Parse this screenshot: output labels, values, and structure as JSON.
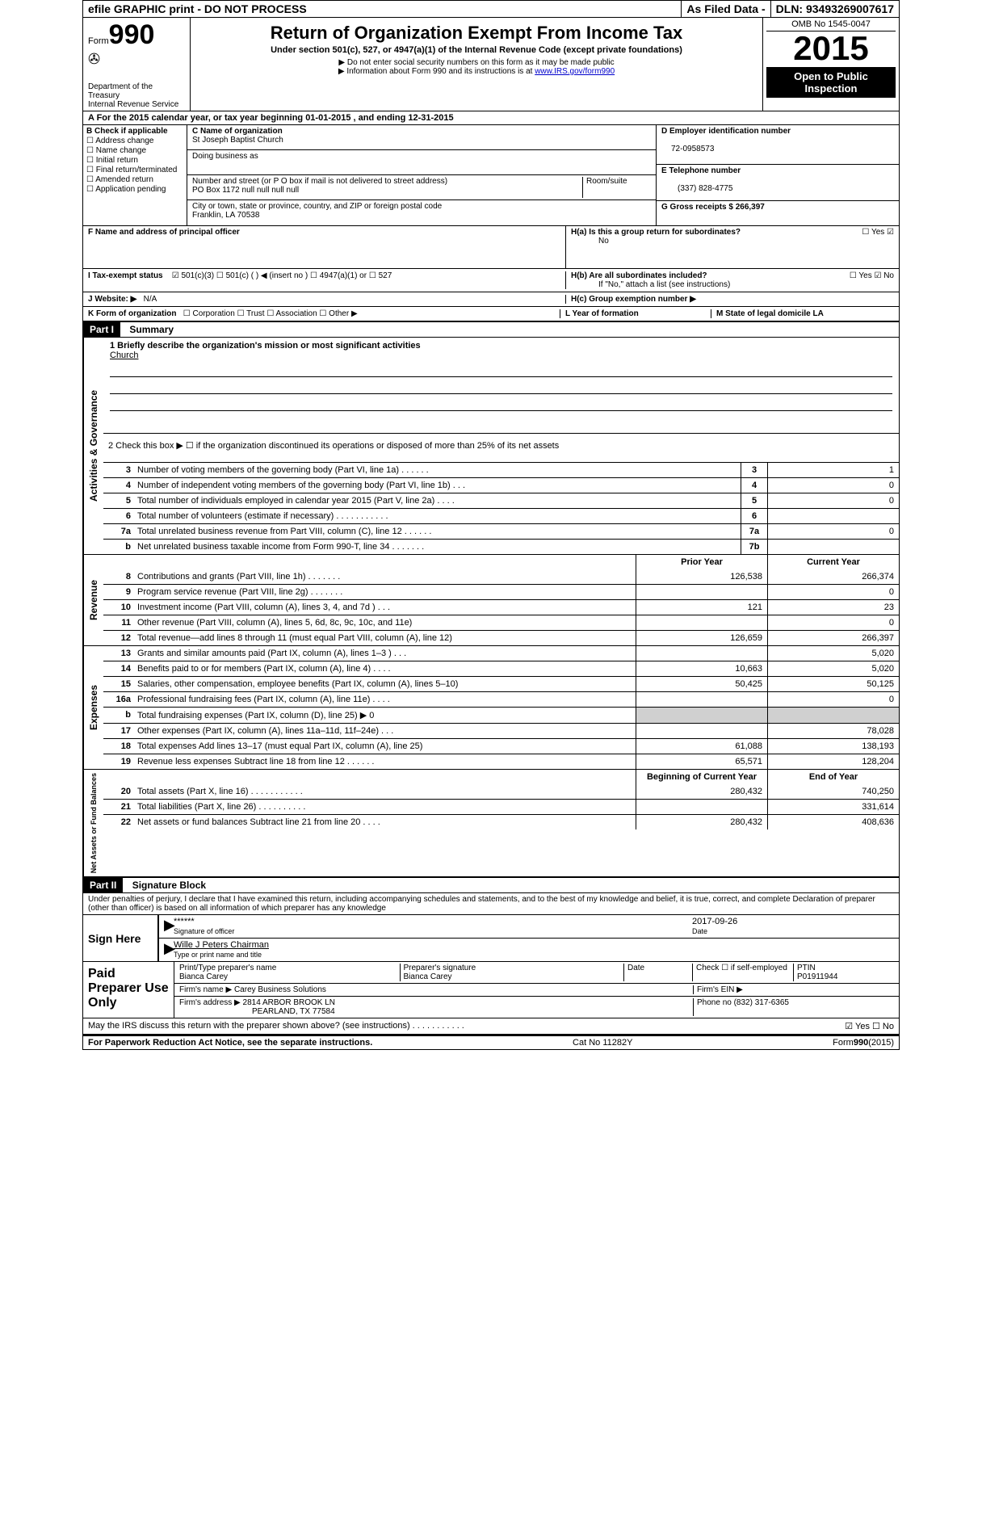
{
  "topbar": {
    "left": "efile GRAPHIC print - DO NOT PROCESS",
    "mid": "As Filed Data -",
    "right": "DLN: 93493269007617"
  },
  "header": {
    "form_prefix": "Form",
    "form_number": "990",
    "dept1": "Department of the Treasury",
    "dept2": "Internal Revenue Service",
    "title": "Return of Organization Exempt From Income Tax",
    "subtitle": "Under section 501(c), 527, or 4947(a)(1) of the Internal Revenue Code (except private foundations)",
    "note1": "▶ Do not enter social security numbers on this form as it may be made public",
    "note2_pre": "▶ Information about Form 990 and its instructions is at ",
    "note2_link": "www.IRS.gov/form990",
    "omb": "OMB No 1545-0047",
    "year": "2015",
    "open1": "Open to Public",
    "open2": "Inspection"
  },
  "lineA": "A  For the 2015 calendar year, or tax year beginning 01-01-2015   , and ending 12-31-2015",
  "sectionB": {
    "label": "B Check if applicable",
    "checks": [
      "Address change",
      "Name change",
      "Initial return",
      "Final return/terminated",
      "Amended return",
      "Application pending"
    ],
    "c_label": "C Name of organization",
    "org_name": "St Joseph Baptist Church",
    "dba_label": "Doing business as",
    "street_label": "Number and street (or P O  box if mail is not delivered to street address)",
    "room_label": "Room/suite",
    "street": "PO Box 1172 null null null null",
    "city_label": "City or town, state or province, country, and ZIP or foreign postal code",
    "city": "Franklin, LA  70538",
    "d_label": "D Employer identification number",
    "ein": "72-0958573",
    "e_label": "E Telephone number",
    "phone": "(337) 828-4775",
    "g_label": "G Gross receipts $ 266,397"
  },
  "sectionF": {
    "f_label": "F  Name and address of principal officer",
    "ha_label": "H(a)  Is this a group return for subordinates?",
    "ha_no": "No",
    "ha_yes_box": "☐  Yes  ☑",
    "hb_label": "H(b)  Are all subordinates included?",
    "hb_boxes": "☐ Yes  ☑ No",
    "hb_note": "If \"No,\" attach a list  (see instructions)",
    "hc_label": "H(c)  Group exemption number ▶"
  },
  "lineI": {
    "label": "I  Tax-exempt status",
    "opts": "☑ 501(c)(3)    ☐ 501(c) (  ) ◀ (insert no )    ☐ 4947(a)(1) or    ☐ 527"
  },
  "lineJ": {
    "label": "J  Website: ▶",
    "val": "N/A"
  },
  "lineK": {
    "label": "K Form of organization",
    "opts": "☐ Corporation  ☐ Trust  ☐ Association  ☐ Other ▶",
    "l_label": "L Year of formation",
    "m_label": "M State of legal domicile  LA"
  },
  "part1": {
    "hdr": "Part I",
    "title": "Summary",
    "line1_label": "1 Briefly describe the organization's mission or most significant activities",
    "line1_val": "Church",
    "line2": "2  Check this box ▶ ☐ if the organization discontinued its operations or disposed of more than 25% of its net assets"
  },
  "governance": {
    "vlabel": "Activities & Governance",
    "rows": [
      {
        "n": "3",
        "t": "Number of voting members of the governing body (Part VI, line 1a)  .   .   .   .   .   .",
        "box": "3",
        "v": "1"
      },
      {
        "n": "4",
        "t": "Number of independent voting members of the governing body (Part VI, line 1b)  .   .   .",
        "box": "4",
        "v": "0"
      },
      {
        "n": "5",
        "t": "Total number of individuals employed in calendar year 2015 (Part V, line 2a)  .   .   .   .",
        "box": "5",
        "v": "0"
      },
      {
        "n": "6",
        "t": "Total number of volunteers (estimate if necessary)  .   .   .   .   .   .   .   .   .   .   .",
        "box": "6",
        "v": ""
      },
      {
        "n": "7a",
        "t": "Total unrelated business revenue from Part VIII, column (C), line 12  .   .   .   .   .   .",
        "box": "7a",
        "v": "0"
      },
      {
        "n": "b",
        "t": "Net unrelated business taxable income from Form 990-T, line 34  .   .   .   .   .   .   .",
        "box": "7b",
        "v": ""
      }
    ]
  },
  "twocol_hdr": {
    "prior": "Prior Year",
    "current": "Current Year"
  },
  "revenue": {
    "vlabel": "Revenue",
    "rows": [
      {
        "n": "8",
        "t": "Contributions and grants (Part VIII, line 1h)  .   .   .   .   .   .   .",
        "p": "126,538",
        "c": "266,374"
      },
      {
        "n": "9",
        "t": "Program service revenue (Part VIII, line 2g)  .   .   .   .   .   .   .",
        "p": "",
        "c": "0"
      },
      {
        "n": "10",
        "t": "Investment income (Part VIII, column (A), lines 3, 4, and 7d )  .   .   .",
        "p": "121",
        "c": "23"
      },
      {
        "n": "11",
        "t": "Other revenue (Part VIII, column (A), lines 5, 6d, 8c, 9c, 10c, and 11e)",
        "p": "",
        "c": "0"
      },
      {
        "n": "12",
        "t": "Total revenue—add lines 8 through 11 (must equal Part VIII, column (A), line 12)",
        "p": "126,659",
        "c": "266,397"
      }
    ]
  },
  "expenses": {
    "vlabel": "Expenses",
    "rows": [
      {
        "n": "13",
        "t": "Grants and similar amounts paid (Part IX, column (A), lines 1–3 )  .   .   .",
        "p": "",
        "c": "5,020"
      },
      {
        "n": "14",
        "t": "Benefits paid to or for members (Part IX, column (A), line 4)  .   .   .   .",
        "p": "10,663",
        "c": "5,020"
      },
      {
        "n": "15",
        "t": "Salaries, other compensation, employee benefits (Part IX, column (A), lines 5–10)",
        "p": "50,425",
        "c": "50,125"
      },
      {
        "n": "16a",
        "t": "Professional fundraising fees (Part IX, column (A), line 11e)  .   .   .   .",
        "p": "",
        "c": "0"
      },
      {
        "n": "b",
        "t": "Total fundraising expenses (Part IX, column (D), line 25) ▶ 0",
        "p": "—shade—",
        "c": "—shade—"
      },
      {
        "n": "17",
        "t": "Other expenses (Part IX, column (A), lines 11a–11d, 11f–24e)  .   .   .",
        "p": "",
        "c": "78,028"
      },
      {
        "n": "18",
        "t": "Total expenses  Add lines 13–17 (must equal Part IX, column (A), line 25)",
        "p": "61,088",
        "c": "138,193"
      },
      {
        "n": "19",
        "t": "Revenue less expenses  Subtract line 18 from line 12  .   .   .   .   .   .",
        "p": "65,571",
        "c": "128,204"
      }
    ]
  },
  "netassets_hdr": {
    "beg": "Beginning of Current Year",
    "end": "End of Year"
  },
  "netassets": {
    "vlabel": "Net Assets or Fund Balances",
    "rows": [
      {
        "n": "20",
        "t": "Total assets (Part X, line 16)  .   .   .   .   .   .   .   .   .   .   .",
        "p": "280,432",
        "c": "740,250"
      },
      {
        "n": "21",
        "t": "Total liabilities (Part X, line 26)  .   .   .   .   .   .   .   .   .   .",
        "p": "",
        "c": "331,614"
      },
      {
        "n": "22",
        "t": "Net assets or fund balances  Subtract line 21 from line 20  .   .   .   .",
        "p": "280,432",
        "c": "408,636"
      }
    ]
  },
  "part2": {
    "hdr": "Part II",
    "title": "Signature Block",
    "perjury": "Under penalties of perjury, I declare that I have examined this return, including accompanying schedules and statements, and to the best of my knowledge and belief, it is true, correct, and complete  Declaration of preparer (other than officer) is based on all information of which preparer has any knowledge"
  },
  "sign": {
    "label": "Sign Here",
    "stars": "******",
    "sig_label": "Signature of officer",
    "date": "2017-09-26",
    "date_label": "Date",
    "name": "Wille J Peters Chairman",
    "name_label": "Type or print name and title"
  },
  "paid": {
    "label": "Paid Preparer Use Only",
    "h1": "Print/Type preparer's name",
    "v1": "Bianca Carey",
    "h2": "Preparer's signature",
    "v2": "Bianca Carey",
    "h3": "Date",
    "h4_label": "Check ☐ if self-employed",
    "h5": "PTIN",
    "v5": "P01911944",
    "firm_name_l": "Firm's name    ▶",
    "firm_name": "Carey Business Solutions",
    "firm_ein_l": "Firm's EIN ▶",
    "firm_addr_l": "Firm's address ▶",
    "firm_addr1": "2814 ARBOR BROOK LN",
    "firm_addr2": "PEARLAND, TX  77584",
    "phone_l": "Phone no  (832) 317-6365"
  },
  "discuss": {
    "q": "May the IRS discuss this return with the preparer shown above? (see instructions)  .   .   .   .   .   .   .   .   .   .   .",
    "a": "☑ Yes   ☐ No"
  },
  "footer": {
    "left": "For Paperwork Reduction Act Notice, see the separate instructions.",
    "mid": "Cat No 11282Y",
    "right": "Form 990 (2015)"
  }
}
